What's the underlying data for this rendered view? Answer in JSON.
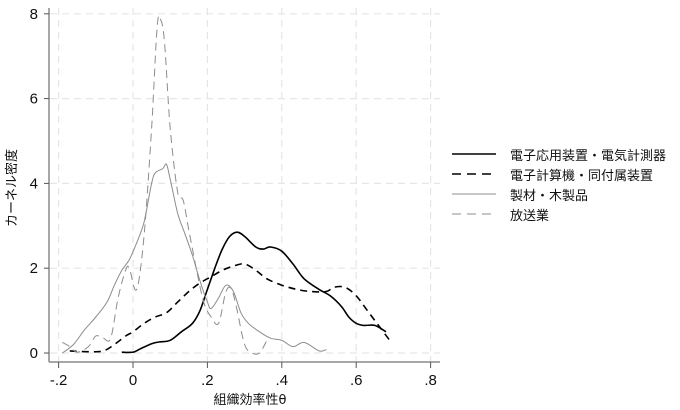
{
  "chart_data": {
    "type": "line",
    "title": "",
    "xlabel": "組織効率性θ",
    "ylabel": "カーネル密度",
    "xlim": [
      -0.2,
      0.8
    ],
    "ylim": [
      0,
      8
    ],
    "x_ticks": [
      -0.2,
      0,
      0.2,
      0.4,
      0.6,
      0.8
    ],
    "x_tick_labels": [
      "-.2",
      "0",
      ".2",
      ".4",
      ".6",
      ".8"
    ],
    "y_ticks": [
      0,
      2,
      4,
      6,
      8
    ],
    "y_tick_labels": [
      "0",
      "2",
      "4",
      "6",
      "8"
    ],
    "grid": true,
    "legend_position": "right",
    "series": [
      {
        "name": "電子応用装置・電気計測器",
        "style": "solid",
        "color": "#000000",
        "width": 1.6,
        "points": [
          [
            -0.03,
            0.02
          ],
          [
            0.0,
            0.02
          ],
          [
            0.02,
            0.1
          ],
          [
            0.05,
            0.22
          ],
          [
            0.07,
            0.26
          ],
          [
            0.1,
            0.3
          ],
          [
            0.13,
            0.5
          ],
          [
            0.16,
            0.7
          ],
          [
            0.18,
            1.0
          ],
          [
            0.2,
            1.5
          ],
          [
            0.22,
            2.0
          ],
          [
            0.24,
            2.45
          ],
          [
            0.26,
            2.75
          ],
          [
            0.28,
            2.85
          ],
          [
            0.3,
            2.75
          ],
          [
            0.33,
            2.5
          ],
          [
            0.35,
            2.45
          ],
          [
            0.37,
            2.5
          ],
          [
            0.4,
            2.4
          ],
          [
            0.43,
            2.1
          ],
          [
            0.46,
            1.75
          ],
          [
            0.5,
            1.5
          ],
          [
            0.53,
            1.35
          ],
          [
            0.56,
            1.1
          ],
          [
            0.58,
            0.85
          ],
          [
            0.6,
            0.7
          ],
          [
            0.62,
            0.65
          ],
          [
            0.65,
            0.65
          ],
          [
            0.68,
            0.5
          ]
        ]
      },
      {
        "name": "電子計算機・同付属装置",
        "style": "dashed",
        "color": "#000000",
        "width": 1.6,
        "points": [
          [
            -0.17,
            0.05
          ],
          [
            -0.12,
            0.03
          ],
          [
            -0.08,
            0.05
          ],
          [
            -0.05,
            0.2
          ],
          [
            -0.02,
            0.4
          ],
          [
            0.0,
            0.5
          ],
          [
            0.03,
            0.7
          ],
          [
            0.06,
            0.85
          ],
          [
            0.09,
            0.95
          ],
          [
            0.12,
            1.2
          ],
          [
            0.15,
            1.45
          ],
          [
            0.18,
            1.65
          ],
          [
            0.21,
            1.8
          ],
          [
            0.24,
            1.95
          ],
          [
            0.27,
            2.05
          ],
          [
            0.3,
            2.1
          ],
          [
            0.33,
            1.95
          ],
          [
            0.36,
            1.75
          ],
          [
            0.4,
            1.6
          ],
          [
            0.44,
            1.5
          ],
          [
            0.48,
            1.45
          ],
          [
            0.52,
            1.45
          ],
          [
            0.54,
            1.55
          ],
          [
            0.57,
            1.55
          ],
          [
            0.6,
            1.35
          ],
          [
            0.63,
            1.0
          ],
          [
            0.66,
            0.65
          ],
          [
            0.69,
            0.3
          ]
        ]
      },
      {
        "name": "製材・木製品",
        "style": "solid",
        "color": "#8c8c8c",
        "width": 1.0,
        "points": [
          [
            -0.19,
            0.0
          ],
          [
            -0.16,
            0.2
          ],
          [
            -0.13,
            0.55
          ],
          [
            -0.1,
            0.85
          ],
          [
            -0.07,
            1.2
          ],
          [
            -0.05,
            1.6
          ],
          [
            -0.03,
            1.95
          ],
          [
            -0.01,
            2.2
          ],
          [
            0.01,
            2.6
          ],
          [
            0.03,
            3.1
          ],
          [
            0.05,
            4.0
          ],
          [
            0.06,
            4.25
          ],
          [
            0.08,
            4.35
          ],
          [
            0.09,
            4.45
          ],
          [
            0.1,
            4.1
          ],
          [
            0.12,
            3.3
          ],
          [
            0.14,
            2.8
          ],
          [
            0.16,
            2.3
          ],
          [
            0.18,
            1.7
          ],
          [
            0.2,
            1.2
          ],
          [
            0.21,
            1.05
          ],
          [
            0.23,
            1.3
          ],
          [
            0.25,
            1.6
          ],
          [
            0.27,
            1.45
          ],
          [
            0.29,
            0.95
          ],
          [
            0.31,
            0.7
          ],
          [
            0.34,
            0.5
          ],
          [
            0.37,
            0.35
          ],
          [
            0.4,
            0.3
          ],
          [
            0.43,
            0.15
          ],
          [
            0.46,
            0.25
          ],
          [
            0.5,
            0.05
          ],
          [
            0.52,
            0.08
          ]
        ]
      },
      {
        "name": "放送業",
        "style": "dashed",
        "color": "#8c8c8c",
        "width": 1.0,
        "points": [
          [
            -0.19,
            0.25
          ],
          [
            -0.17,
            0.15
          ],
          [
            -0.15,
            0.02
          ],
          [
            -0.12,
            0.15
          ],
          [
            -0.1,
            0.4
          ],
          [
            -0.08,
            0.35
          ],
          [
            -0.06,
            0.35
          ],
          [
            -0.04,
            1.3
          ],
          [
            -0.02,
            1.95
          ],
          [
            -0.01,
            2.0
          ],
          [
            0.01,
            1.5
          ],
          [
            0.03,
            2.8
          ],
          [
            0.05,
            5.3
          ],
          [
            0.065,
            7.7
          ],
          [
            0.075,
            7.85
          ],
          [
            0.085,
            7.3
          ],
          [
            0.1,
            5.3
          ],
          [
            0.12,
            3.8
          ],
          [
            0.135,
            3.6
          ],
          [
            0.15,
            2.9
          ],
          [
            0.17,
            2.0
          ],
          [
            0.19,
            1.2
          ],
          [
            0.21,
            0.85
          ],
          [
            0.23,
            0.7
          ],
          [
            0.25,
            1.45
          ],
          [
            0.265,
            1.5
          ],
          [
            0.28,
            1.0
          ],
          [
            0.3,
            0.2
          ],
          [
            0.32,
            0.0
          ],
          [
            0.34,
            0.0
          ],
          [
            0.36,
            0.3
          ]
        ]
      }
    ]
  }
}
